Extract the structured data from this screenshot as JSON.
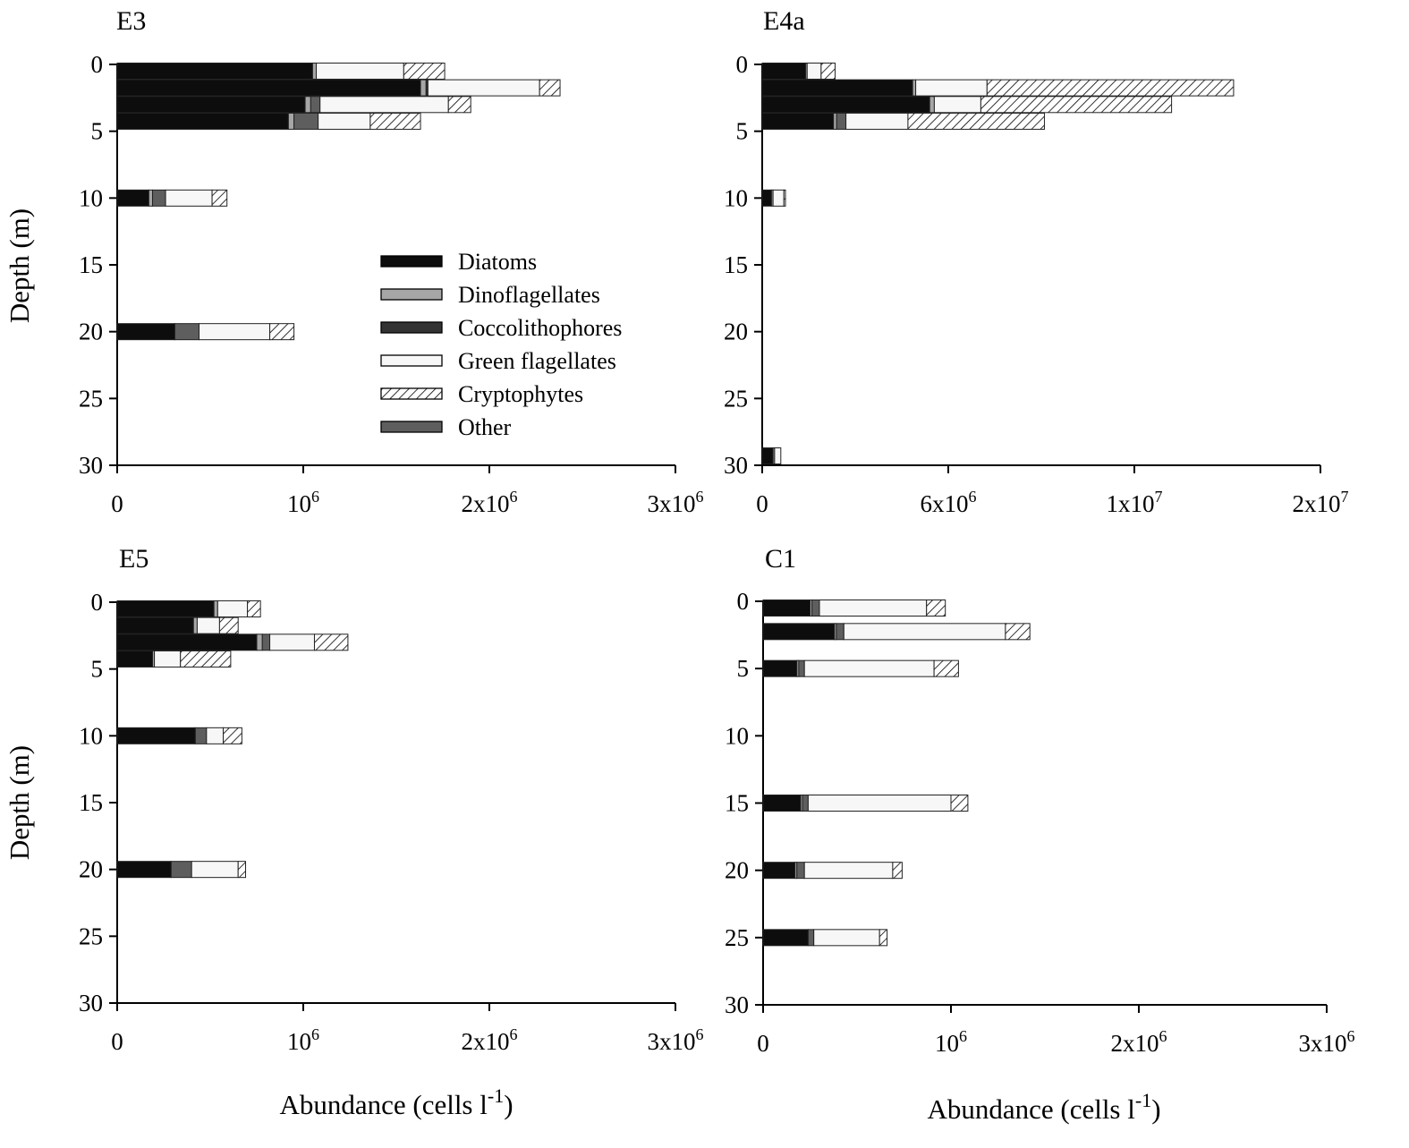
{
  "figure": {
    "y_axis_label": "Depth (m)",
    "x_axis_label": "Abundance (cells l-1)"
  },
  "legend": {
    "entries": [
      {
        "name": "Diatoms",
        "fill": "#0d0d0d"
      },
      {
        "name": "Dinoflagellates",
        "fill": "#a6a6a6"
      },
      {
        "name": "Coccolithophores",
        "fill": "#333333"
      },
      {
        "name": "Green flagellates",
        "fill": "#f7f7f7"
      },
      {
        "name": "Cryptophytes",
        "fill": "hatch"
      },
      {
        "name": "Other",
        "fill": "#5e5e5e"
      }
    ]
  },
  "chart_data": [
    {
      "type": "bar",
      "title": "E3",
      "orientation": "horizontal-stacked",
      "xlabel": "",
      "ylabel": "Depth (m)",
      "ylim": [
        0,
        30
      ],
      "xlim": [
        0,
        3000000
      ],
      "x_ticks": [
        0,
        1000000,
        2000000,
        3000000
      ],
      "x_tick_labels": [
        "0",
        "10^6",
        "2x10^6",
        "3x10^6"
      ],
      "y_ticks": [
        0,
        5,
        10,
        15,
        20,
        25,
        30
      ],
      "series_order": [
        "Diatoms",
        "Dinoflagellates",
        "Coccolithophores",
        "Other",
        "Green flagellates",
        "Cryptophytes"
      ],
      "bars": [
        {
          "depth": 0.5,
          "Diatoms": 1050000,
          "Dinoflagellates": 20000,
          "Coccolithophores": 0,
          "Other": 0,
          "Green flagellates": 470000,
          "Cryptophytes": 220000
        },
        {
          "depth": 1.75,
          "Diatoms": 1630000,
          "Dinoflagellates": 30000,
          "Coccolithophores": 10000,
          "Other": 0,
          "Green flagellates": 600000,
          "Cryptophytes": 110000
        },
        {
          "depth": 3.0,
          "Diatoms": 1010000,
          "Dinoflagellates": 30000,
          "Coccolithophores": 0,
          "Other": 50000,
          "Green flagellates": 690000,
          "Cryptophytes": 120000
        },
        {
          "depth": 4.25,
          "Diatoms": 920000,
          "Dinoflagellates": 30000,
          "Coccolithophores": 0,
          "Other": 130000,
          "Green flagellates": 280000,
          "Cryptophytes": 270000
        },
        {
          "depth": 10,
          "Diatoms": 170000,
          "Dinoflagellates": 20000,
          "Coccolithophores": 0,
          "Other": 70000,
          "Green flagellates": 250000,
          "Cryptophytes": 80000
        },
        {
          "depth": 20,
          "Diatoms": 310000,
          "Dinoflagellates": 0,
          "Coccolithophores": 0,
          "Other": 130000,
          "Green flagellates": 380000,
          "Cryptophytes": 130000
        }
      ]
    },
    {
      "type": "bar",
      "title": "E4a",
      "orientation": "horizontal-stacked",
      "xlabel": "",
      "ylabel": "",
      "ylim": [
        0,
        30
      ],
      "xlim": [
        0,
        18000000
      ],
      "x_ticks": [
        0,
        6000000,
        12000000,
        18000000
      ],
      "x_tick_labels": [
        "0",
        "6x10^6",
        "1x10^7",
        "2x10^7"
      ],
      "y_ticks": [
        0,
        5,
        10,
        15,
        20,
        25,
        30
      ],
      "series_order": [
        "Diatoms",
        "Dinoflagellates",
        "Coccolithophores",
        "Other",
        "Green flagellates",
        "Cryptophytes"
      ],
      "bars": [
        {
          "depth": 0.5,
          "Diatoms": 1400000,
          "Dinoflagellates": 50000,
          "Coccolithophores": 0,
          "Other": 0,
          "Green flagellates": 450000,
          "Cryptophytes": 450000
        },
        {
          "depth": 1.75,
          "Diatoms": 4850000,
          "Dinoflagellates": 100000,
          "Coccolithophores": 0,
          "Other": 0,
          "Green flagellates": 2300000,
          "Cryptophytes": 7950000
        },
        {
          "depth": 3.0,
          "Diatoms": 5400000,
          "Dinoflagellates": 150000,
          "Coccolithophores": 0,
          "Other": 0,
          "Green flagellates": 1500000,
          "Cryptophytes": 6150000
        },
        {
          "depth": 4.25,
          "Diatoms": 2300000,
          "Dinoflagellates": 100000,
          "Coccolithophores": 0,
          "Other": 300000,
          "Green flagellates": 2000000,
          "Cryptophytes": 4400000
        },
        {
          "depth": 10,
          "Diatoms": 300000,
          "Dinoflagellates": 50000,
          "Coccolithophores": 0,
          "Other": 0,
          "Green flagellates": 350000,
          "Cryptophytes": 50000
        },
        {
          "depth": 29.3,
          "Diatoms": 350000,
          "Dinoflagellates": 50000,
          "Coccolithophores": 0,
          "Other": 0,
          "Green flagellates": 200000,
          "Cryptophytes": 0
        }
      ]
    },
    {
      "type": "bar",
      "title": "E5",
      "orientation": "horizontal-stacked",
      "xlabel": "Abundance (cells l-1)",
      "ylabel": "Depth (m)",
      "ylim": [
        0,
        30
      ],
      "xlim": [
        0,
        3000000
      ],
      "x_ticks": [
        0,
        1000000,
        2000000,
        3000000
      ],
      "x_tick_labels": [
        "0",
        "10^6",
        "2x10^6",
        "3x10^6"
      ],
      "y_ticks": [
        0,
        5,
        10,
        15,
        20,
        25,
        30
      ],
      "series_order": [
        "Diatoms",
        "Dinoflagellates",
        "Coccolithophores",
        "Other",
        "Green flagellates",
        "Cryptophytes"
      ],
      "bars": [
        {
          "depth": 0.5,
          "Diatoms": 520000,
          "Dinoflagellates": 20000,
          "Coccolithophores": 0,
          "Other": 0,
          "Green flagellates": 160000,
          "Cryptophytes": 70000
        },
        {
          "depth": 1.75,
          "Diatoms": 410000,
          "Dinoflagellates": 20000,
          "Coccolithophores": 0,
          "Other": 0,
          "Green flagellates": 120000,
          "Cryptophytes": 100000
        },
        {
          "depth": 3.0,
          "Diatoms": 750000,
          "Dinoflagellates": 30000,
          "Coccolithophores": 0,
          "Other": 40000,
          "Green flagellates": 240000,
          "Cryptophytes": 180000
        },
        {
          "depth": 4.25,
          "Diatoms": 190000,
          "Dinoflagellates": 10000,
          "Coccolithophores": 0,
          "Other": 0,
          "Green flagellates": 140000,
          "Cryptophytes": 270000
        },
        {
          "depth": 10,
          "Diatoms": 420000,
          "Dinoflagellates": 0,
          "Coccolithophores": 0,
          "Other": 60000,
          "Green flagellates": 90000,
          "Cryptophytes": 100000
        },
        {
          "depth": 20,
          "Diatoms": 290000,
          "Dinoflagellates": 0,
          "Coccolithophores": 0,
          "Other": 110000,
          "Green flagellates": 250000,
          "Cryptophytes": 40000
        }
      ]
    },
    {
      "type": "bar",
      "title": "C1",
      "orientation": "horizontal-stacked",
      "xlabel": "Abundance (cells l-1)",
      "ylabel": "",
      "ylim": [
        0,
        30
      ],
      "xlim": [
        0,
        3000000
      ],
      "x_ticks": [
        0,
        1000000,
        2000000,
        3000000
      ],
      "x_tick_labels": [
        "0",
        "10^6",
        "2x10^6",
        "3x10^6"
      ],
      "y_ticks": [
        0,
        5,
        10,
        15,
        20,
        25,
        30
      ],
      "series_order": [
        "Diatoms",
        "Dinoflagellates",
        "Coccolithophores",
        "Other",
        "Green flagellates",
        "Cryptophytes"
      ],
      "bars": [
        {
          "depth": 0.5,
          "Diatoms": 250000,
          "Dinoflagellates": 10000,
          "Coccolithophores": 0,
          "Other": 40000,
          "Green flagellates": 570000,
          "Cryptophytes": 100000
        },
        {
          "depth": 2.25,
          "Diatoms": 380000,
          "Dinoflagellates": 10000,
          "Coccolithophores": 0,
          "Other": 40000,
          "Green flagellates": 860000,
          "Cryptophytes": 130000
        },
        {
          "depth": 5,
          "Diatoms": 180000,
          "Dinoflagellates": 10000,
          "Coccolithophores": 0,
          "Other": 30000,
          "Green flagellates": 690000,
          "Cryptophytes": 130000
        },
        {
          "depth": 15,
          "Diatoms": 200000,
          "Dinoflagellates": 10000,
          "Coccolithophores": 0,
          "Other": 30000,
          "Green flagellates": 760000,
          "Cryptophytes": 90000
        },
        {
          "depth": 20,
          "Diatoms": 170000,
          "Dinoflagellates": 10000,
          "Coccolithophores": 0,
          "Other": 40000,
          "Green flagellates": 470000,
          "Cryptophytes": 50000
        },
        {
          "depth": 25,
          "Diatoms": 240000,
          "Dinoflagellates": 0,
          "Coccolithophores": 0,
          "Other": 30000,
          "Green flagellates": 350000,
          "Cryptophytes": 40000
        }
      ]
    }
  ]
}
